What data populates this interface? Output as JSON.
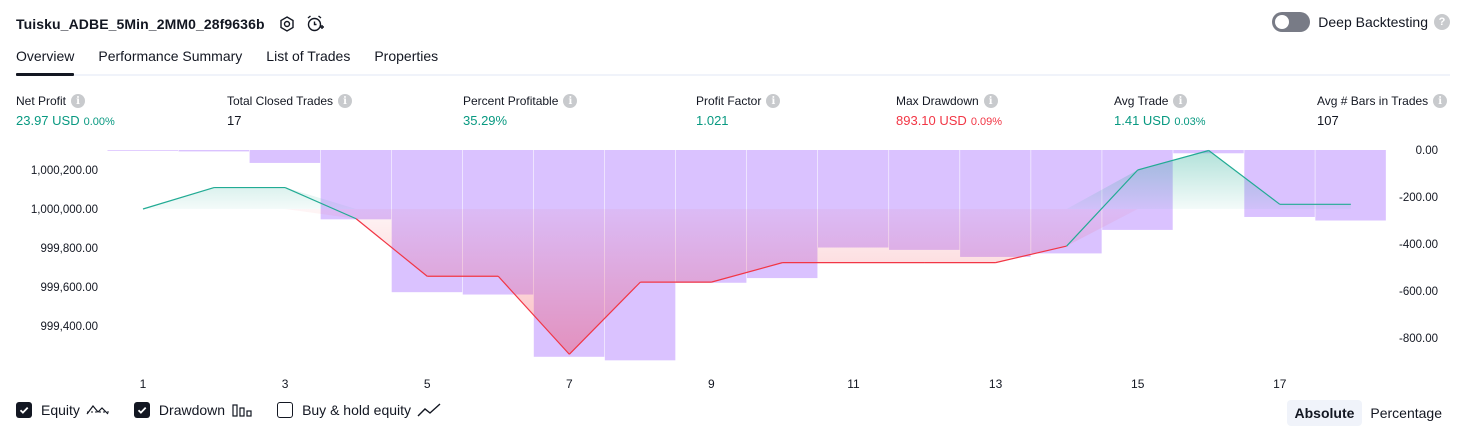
{
  "header": {
    "title": "Tuisku_ADBE_5Min_2MM0_28f9636b",
    "icons": [
      "settings-icon",
      "add-alert-icon"
    ],
    "deep_backtesting_label": "Deep Backtesting",
    "deep_backtesting_enabled": false
  },
  "tabs": [
    {
      "label": "Overview",
      "active": true
    },
    {
      "label": "Performance Summary",
      "active": false
    },
    {
      "label": "List of Trades",
      "active": false
    },
    {
      "label": "Properties",
      "active": false
    }
  ],
  "metrics": {
    "net_profit": {
      "label": "Net Profit",
      "value": "23.97 USD",
      "sub": "0.00%",
      "tone": "pos"
    },
    "total_closed_trades": {
      "label": "Total Closed Trades",
      "value": "17",
      "sub": "",
      "tone": "neu"
    },
    "percent_profitable": {
      "label": "Percent Profitable",
      "value": "35.29%",
      "sub": "",
      "tone": "pos"
    },
    "profit_factor": {
      "label": "Profit Factor",
      "value": "1.021",
      "sub": "",
      "tone": "pos"
    },
    "max_drawdown": {
      "label": "Max Drawdown",
      "value": "893.10 USD",
      "sub": "0.09%",
      "tone": "neg"
    },
    "avg_trade": {
      "label": "Avg Trade",
      "value": "1.41 USD",
      "sub": "0.03%",
      "tone": "pos"
    },
    "avg_bars": {
      "label": "Avg # Bars in Trades",
      "value": "107",
      "sub": "",
      "tone": "neu"
    }
  },
  "chart_data": {
    "type": "line",
    "x": [
      1,
      2,
      3,
      4,
      5,
      6,
      7,
      8,
      9,
      10,
      11,
      12,
      13,
      14,
      15,
      16,
      17,
      18
    ],
    "x_ticks": [
      "1",
      "3",
      "5",
      "7",
      "9",
      "11",
      "13",
      "15",
      "17"
    ],
    "left_axis": {
      "ticks": [
        "1,000,200.00",
        "1,000,000.00",
        "999,800.00",
        "999,600.00",
        "999,400.00"
      ],
      "values": [
        1000200,
        1000000,
        999800,
        999600,
        999400
      ],
      "baseline": 1000000
    },
    "right_axis": {
      "ticks": [
        "0.00",
        "-200.00",
        "-400.00",
        "-600.00",
        "-800.00"
      ],
      "values": [
        0,
        -200,
        -400,
        -600,
        -800
      ]
    },
    "series": [
      {
        "name": "Equity",
        "axis": "left",
        "values": [
          1000000,
          1000110,
          1000110,
          999950,
          999655,
          999655,
          999255,
          999625,
          999625,
          999725,
          999725,
          999725,
          999725,
          999810,
          1000200,
          1000300,
          1000024,
          1000024
        ]
      },
      {
        "name": "Drawdown",
        "axis": "right",
        "type": "bar",
        "values": [
          -2,
          -6,
          -55,
          -295,
          -605,
          -615,
          -880,
          -895,
          -565,
          -545,
          -415,
          -425,
          -455,
          -440,
          -340,
          -14,
          -285,
          -300
        ]
      }
    ],
    "colors": {
      "equity_up": "#22ab94",
      "equity_down": "#f23645",
      "drawdown_bar": "#d1b3ff",
      "drawdown_fill": "#f48fb1"
    }
  },
  "legend": {
    "equity": {
      "label": "Equity",
      "checked": true,
      "icon": "equity-line-icon"
    },
    "drawdown": {
      "label": "Drawdown",
      "checked": true,
      "icon": "drawdown-bars-icon"
    },
    "buy_hold": {
      "label": "Buy & hold equity",
      "checked": false,
      "icon": "trend-line-icon"
    }
  },
  "modes": {
    "absolute": "Absolute",
    "percentage": "Percentage",
    "selected": "absolute"
  }
}
